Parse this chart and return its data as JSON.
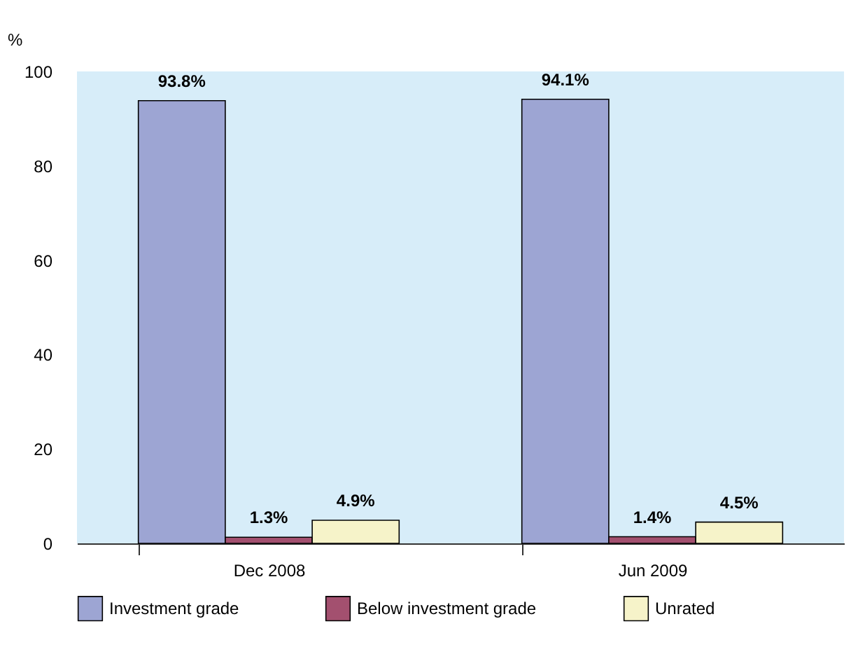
{
  "chart_data": {
    "type": "bar",
    "ylabel": "%",
    "categories": [
      "Dec 2008",
      "Jun 2009"
    ],
    "series": [
      {
        "name": "Investment grade",
        "color": "#9da5d3",
        "values": [
          93.8,
          94.1
        ],
        "value_labels": [
          "93.8%",
          "94.1%"
        ]
      },
      {
        "name": "Below investment grade",
        "color": "#a3506f",
        "values": [
          1.3,
          1.4
        ],
        "value_labels": [
          "1.3%",
          "1.4%"
        ]
      },
      {
        "name": "Unrated",
        "color": "#f6f3c9",
        "values": [
          4.9,
          4.5
        ],
        "value_labels": [
          "4.9%",
          "4.5%"
        ]
      }
    ],
    "ylim": [
      0,
      100
    ],
    "yticks": [
      0,
      20,
      40,
      60,
      80,
      100
    ],
    "grid": false,
    "legend": "bottom"
  }
}
